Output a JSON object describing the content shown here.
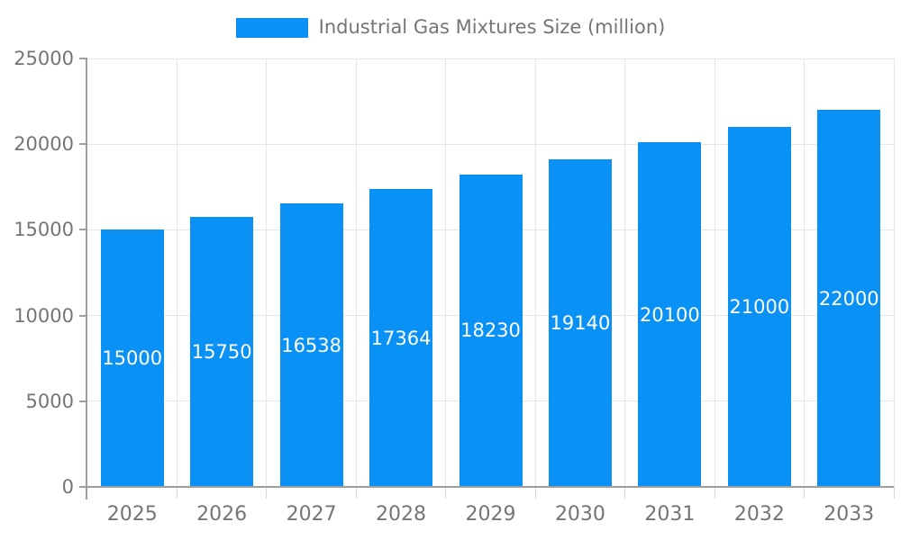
{
  "legend": {
    "label": "Industrial Gas Mixtures Size (million)"
  },
  "colors": {
    "bar": "#0A91F5",
    "axis_line": "#9E9E9E",
    "grid_line": "#E7E7E7",
    "x_tick_line": "#D6D6D6",
    "tick_text": "#757575",
    "legend_text": "#757575",
    "bar_label_text": "#FFFFFF"
  },
  "chart_data": {
    "type": "bar",
    "title": "",
    "xlabel": "",
    "ylabel": "",
    "categories": [
      "2025",
      "2026",
      "2027",
      "2028",
      "2029",
      "2030",
      "2031",
      "2032",
      "2033"
    ],
    "series": [
      {
        "name": "Industrial Gas Mixtures Size (million)",
        "values": [
          15000,
          15750,
          16538,
          17364,
          18230,
          19140,
          20100,
          21000,
          22000
        ]
      }
    ],
    "ylim": [
      0,
      25000
    ],
    "ytick_step": 5000,
    "ytick_labels": [
      "0",
      "5000",
      "10000",
      "15000",
      "20000",
      "25000"
    ],
    "grid": "both",
    "legend_position": "top",
    "value_labels": "inside-center"
  }
}
